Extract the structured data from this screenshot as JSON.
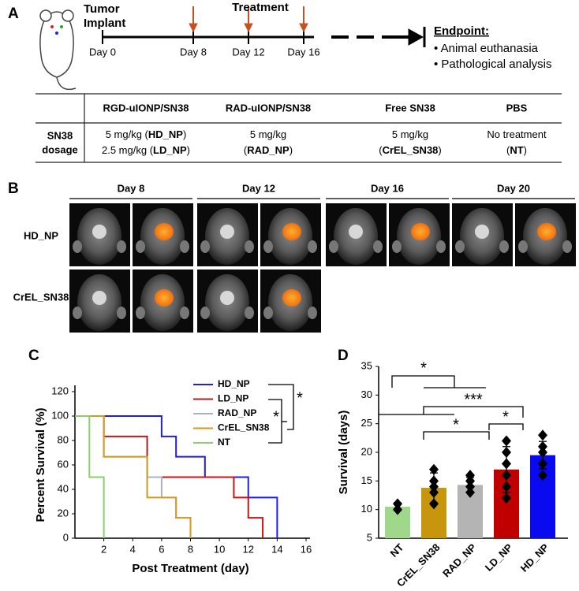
{
  "panel_a": {
    "label": "A",
    "implant": [
      "Tumor",
      "Implant"
    ],
    "treatment": "Treatment",
    "days": [
      "Day 0",
      "Day 8",
      "Day 12",
      "Day 16"
    ],
    "endpoint": {
      "title": "Endpoint:",
      "items": [
        "• Animal euthanasia",
        "• Pathological analysis"
      ]
    },
    "table": {
      "columns": [
        "RGD-uIONP/SN38",
        "RAD-uIONP/SN38",
        "Free SN38",
        "PBS"
      ],
      "row_label": [
        "SN38",
        "dosage"
      ],
      "cells": [
        [
          [
            {
              "text": "5 mg/kg ("
            },
            {
              "text": "HD_NP",
              "bold": true
            },
            {
              "text": ")"
            }
          ],
          [
            {
              "text": "2.5 mg/kg ("
            },
            {
              "text": "LD_NP",
              "bold": true
            },
            {
              "text": ")"
            }
          ]
        ],
        [
          [
            {
              "text": "5 mg/kg"
            }
          ],
          [
            {
              "text": "("
            },
            {
              "text": "RAD_NP",
              "bold": true
            },
            {
              "text": ")"
            }
          ]
        ],
        [
          [
            {
              "text": "5 mg/kg"
            }
          ],
          [
            {
              "text": "("
            },
            {
              "text": "CrEL_SN38",
              "bold": true
            },
            {
              "text": ")"
            }
          ]
        ],
        [
          [
            {
              "text": "No treatment"
            }
          ],
          [
            {
              "text": "("
            },
            {
              "text": "NT",
              "bold": true
            },
            {
              "text": ")"
            }
          ]
        ]
      ]
    }
  },
  "panel_b": {
    "label": "B",
    "days": [
      "Day 8",
      "Day 12",
      "Day 16",
      "Day 20"
    ],
    "rows": [
      "HD_NP",
      "CrEL_SN38"
    ]
  },
  "chart_data": [
    {
      "type": "line",
      "panel_label": "C",
      "x_label": "Post Treatment (day)",
      "y_label": "Percent Survival (%)",
      "xlim": [
        0,
        16
      ],
      "xticks": [
        2,
        4,
        6,
        8,
        10,
        12,
        14,
        16
      ],
      "ylim": [
        0,
        120
      ],
      "yticks": [
        0,
        20,
        40,
        60,
        80,
        100,
        120
      ],
      "series": [
        {
          "name": "HD_NP",
          "color": "#1f1fe0",
          "x": [
            0,
            6,
            6,
            7,
            7,
            9,
            9,
            12,
            12,
            14,
            14
          ],
          "values": [
            100,
            100,
            83.3,
            83.3,
            66.7,
            66.7,
            50,
            50,
            33.3,
            33.3,
            0
          ]
        },
        {
          "name": "LD_NP",
          "color": "#c81414",
          "x": [
            0,
            2,
            2,
            5,
            5,
            11,
            11,
            12,
            12,
            13,
            13
          ],
          "values": [
            100,
            100,
            83.3,
            83.3,
            50,
            50,
            33.3,
            33.3,
            16.7,
            16.7,
            0
          ]
        },
        {
          "name": "RAD_NP",
          "color": "#a8b4c4",
          "x": [
            0,
            2,
            2,
            5,
            5,
            6,
            6,
            7,
            7,
            8,
            8
          ],
          "values": [
            100,
            100,
            66.7,
            66.7,
            50,
            50,
            33.3,
            33.3,
            16.7,
            16.7,
            0
          ]
        },
        {
          "name": "CrEL_SN38",
          "color": "#d29a1e",
          "x": [
            0,
            2,
            2,
            5,
            5,
            7,
            7,
            8,
            8
          ],
          "values": [
            100,
            100,
            66.7,
            66.7,
            33.3,
            33.3,
            16.7,
            16.7,
            0
          ]
        },
        {
          "name": "NT",
          "color": "#8ccf6c",
          "x": [
            0,
            1,
            1,
            2,
            2
          ],
          "values": [
            100,
            100,
            50,
            50,
            0
          ]
        }
      ],
      "significance": [
        "*",
        "*"
      ]
    },
    {
      "type": "bar",
      "panel_label": "D",
      "y_label": "Survival (days)",
      "categories": [
        "NT",
        "CrEL_SN38",
        "RAD_NP",
        "LD_NP",
        "HD_NP"
      ],
      "values": [
        10.5,
        13.8,
        14.3,
        17,
        19.5
      ],
      "errors": [
        0.7,
        2.6,
        1.3,
        4,
        2.4
      ],
      "colors": [
        "#9fd88a",
        "#c8960c",
        "#b4b4b4",
        "#c00000",
        "#0a0af0"
      ],
      "points": [
        [
          10,
          11
        ],
        [
          11,
          13,
          14,
          15,
          17
        ],
        [
          13,
          14,
          15,
          16
        ],
        [
          12,
          14,
          16,
          18,
          20,
          22
        ],
        [
          16,
          18,
          20,
          21,
          23
        ]
      ],
      "ylim": [
        5,
        35
      ],
      "yticks": [
        5,
        10,
        15,
        20,
        25,
        30,
        35
      ],
      "significance": [
        "*",
        "***",
        "*",
        "*"
      ]
    }
  ]
}
